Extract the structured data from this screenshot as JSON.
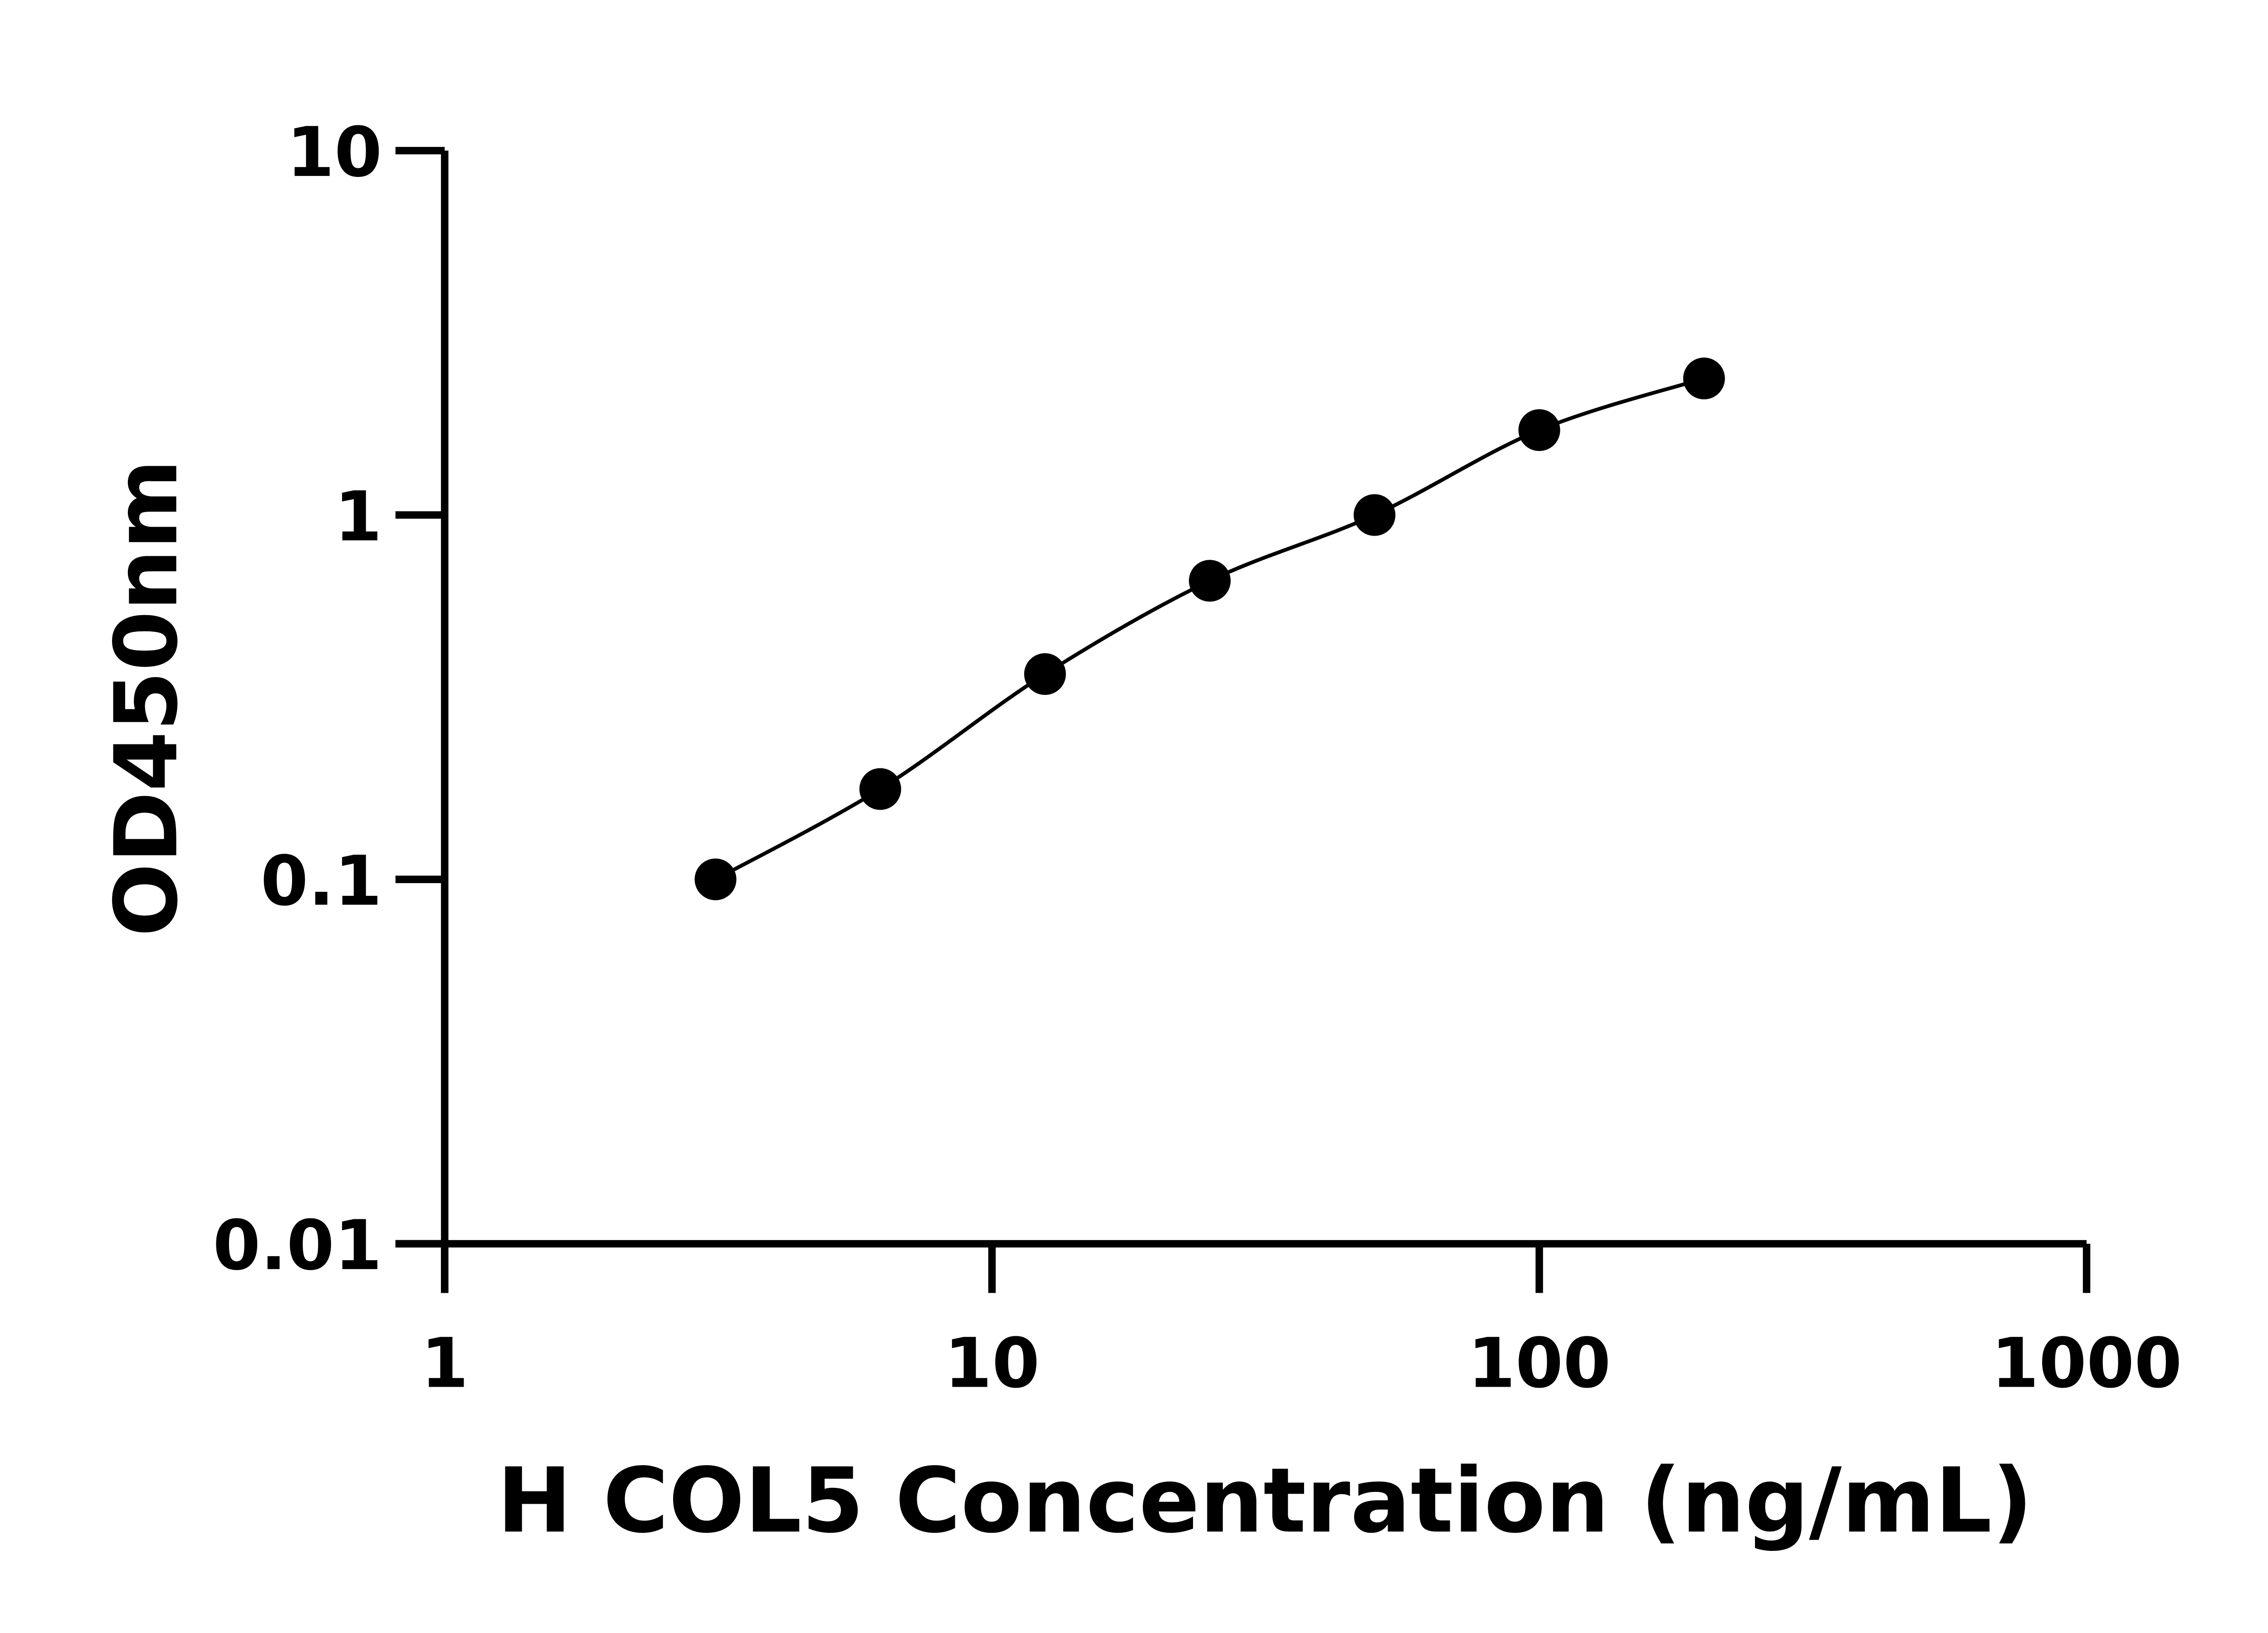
{
  "chart_data": {
    "type": "scatter",
    "title": "",
    "xlabel": "H COL5 Concentration (ng/mL)",
    "ylabel": "OD450nm",
    "x_scale": "log",
    "y_scale": "log",
    "xlim": [
      1,
      1000
    ],
    "ylim": [
      0.01,
      10
    ],
    "x_ticks": [
      1,
      10,
      100,
      1000
    ],
    "x_tick_labels": [
      "1",
      "10",
      "100",
      "1000"
    ],
    "y_ticks": [
      0.01,
      0.1,
      1,
      10
    ],
    "y_tick_labels": [
      "0.01",
      "0.1",
      "1",
      "10"
    ],
    "grid": false,
    "legend": "none",
    "series": [
      {
        "x": [
          3.125,
          6.25,
          12.5,
          25,
          50,
          100,
          200
        ],
        "y": [
          0.1,
          0.177,
          0.366,
          0.66,
          1.0,
          1.71,
          2.37
        ],
        "marker": "filled-circle",
        "line": "fitted-curve",
        "color": "#000000"
      }
    ]
  }
}
